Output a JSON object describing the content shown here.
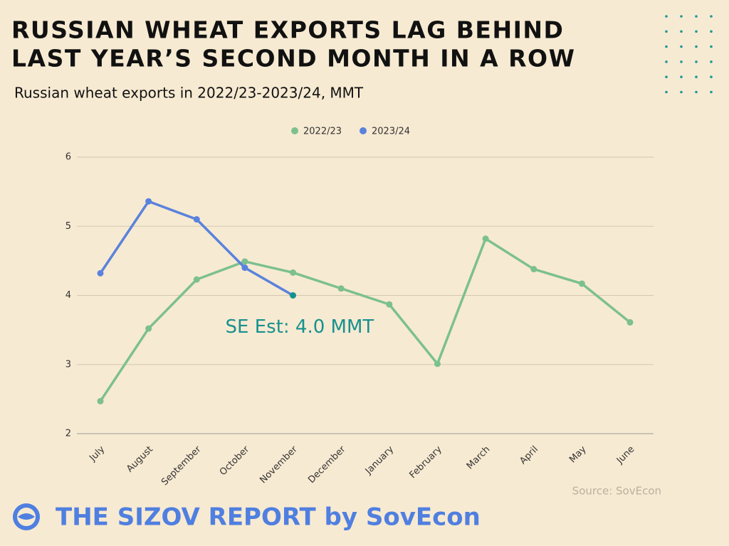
{
  "chart_data": {
    "type": "line",
    "title": "RUSSIAN WHEAT EXPORTS LAG BEHIND",
    "title_line2": "LAST YEAR’S SECOND MONTH IN A ROW",
    "subtitle": "Russian wheat exports in 2022/23-2023/24, MMT",
    "categories": [
      "July",
      "August",
      "September",
      "October",
      "November",
      "December",
      "January",
      "February",
      "March",
      "April",
      "May",
      "June"
    ],
    "series": [
      {
        "name": "2022/23",
        "color": "#7cc08f",
        "values": [
          2.47,
          3.52,
          4.23,
          4.49,
          4.33,
          4.1,
          3.87,
          3.01,
          4.82,
          4.38,
          4.17,
          3.61
        ]
      },
      {
        "name": "2023/24",
        "color": "#5a82dd",
        "values": [
          4.32,
          5.36,
          5.1,
          4.4,
          4.0,
          null,
          null,
          null,
          null,
          null,
          null,
          null
        ]
      }
    ],
    "ylim": [
      2,
      6
    ],
    "yticks": [
      2,
      3,
      4,
      5,
      6
    ],
    "grid": true,
    "legend": "top",
    "annotation": {
      "text": "SE Est: 4.0 MMT",
      "color": "#16918e"
    },
    "source": "Source: SovEcon",
    "footer": "THE SIZOV REPORT by SovEcon"
  }
}
